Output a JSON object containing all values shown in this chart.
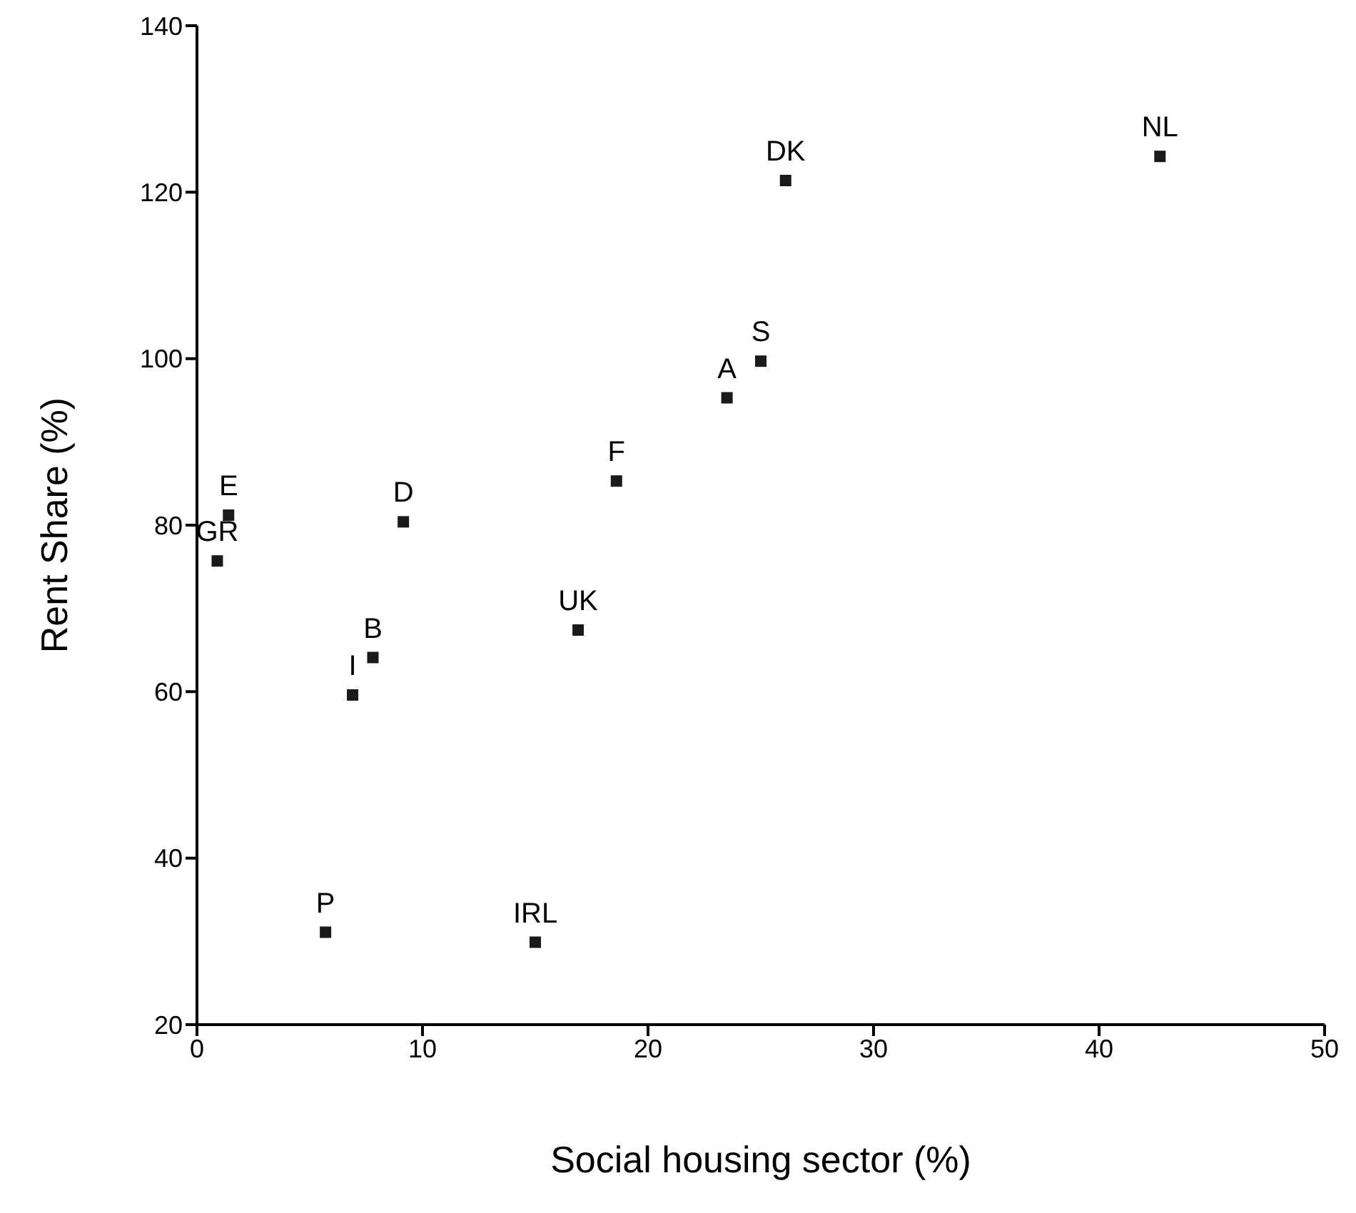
{
  "chart_data": {
    "type": "scatter",
    "xlabel": "Social housing sector (%)",
    "ylabel": "Rent Share (%)",
    "x": [
      1.4,
      0.9,
      9.15,
      7.8,
      6.9,
      5.7,
      15.0,
      16.9,
      18.6,
      23.5,
      25.0,
      26.1,
      42.7
    ],
    "values": [
      81.2,
      75.7,
      80.4,
      64.1,
      59.6,
      31.1,
      29.9,
      67.4,
      85.3,
      95.3,
      99.7,
      121.4,
      124.3
    ],
    "color": "#1a1a1a",
    "marker": "square",
    "xlim": [
      0,
      50
    ],
    "xticks": [
      0,
      10,
      20,
      30,
      40,
      50
    ],
    "ylim": [
      20,
      140
    ],
    "yticks": [
      20,
      40,
      60,
      80,
      100,
      120,
      140
    ],
    "grid": false,
    "legend": false,
    "annotations": [
      {
        "text": "E",
        "x": 1.4,
        "y": 81.2
      },
      {
        "text": "GR",
        "x": 0.9,
        "y": 75.7
      },
      {
        "text": "D",
        "x": 9.15,
        "y": 80.4
      },
      {
        "text": "B",
        "x": 7.8,
        "y": 64.1
      },
      {
        "text": "I",
        "x": 6.9,
        "y": 59.6
      },
      {
        "text": "P",
        "x": 5.7,
        "y": 31.1
      },
      {
        "text": "IRL",
        "x": 15.0,
        "y": 29.9
      },
      {
        "text": "UK",
        "x": 16.9,
        "y": 67.4
      },
      {
        "text": "F",
        "x": 18.6,
        "y": 85.3
      },
      {
        "text": "A",
        "x": 23.5,
        "y": 95.3
      },
      {
        "text": "S",
        "x": 25.0,
        "y": 99.7
      },
      {
        "text": "DK",
        "x": 26.1,
        "y": 121.4
      },
      {
        "text": "NL",
        "x": 42.7,
        "y": 124.3
      }
    ]
  }
}
